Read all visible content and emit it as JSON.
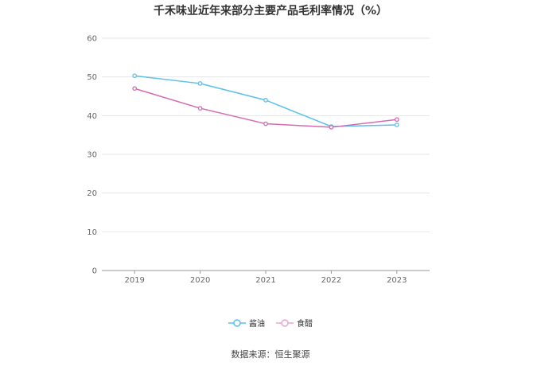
{
  "chart_data": {
    "type": "line",
    "title": "千禾味业近年来部分主要产品毛利率情况（%）",
    "categories": [
      "2019",
      "2020",
      "2021",
      "2022",
      "2023"
    ],
    "series": [
      {
        "name": "酱油",
        "color": "#5BC0EB",
        "values": [
          50.3,
          48.3,
          44.0,
          37.2,
          37.6
        ]
      },
      {
        "name": "食醋",
        "color": "#D46BB0",
        "values": [
          47.0,
          41.9,
          37.9,
          37.0,
          39.0
        ]
      }
    ],
    "ylim": [
      0,
      60
    ],
    "yticks": [
      "0",
      "10",
      "20",
      "30",
      "40",
      "50",
      "60"
    ],
    "xlabel": "",
    "ylabel": "",
    "grid": true,
    "legend_position": "bottom-center"
  },
  "source": "数据来源：恒生聚源"
}
